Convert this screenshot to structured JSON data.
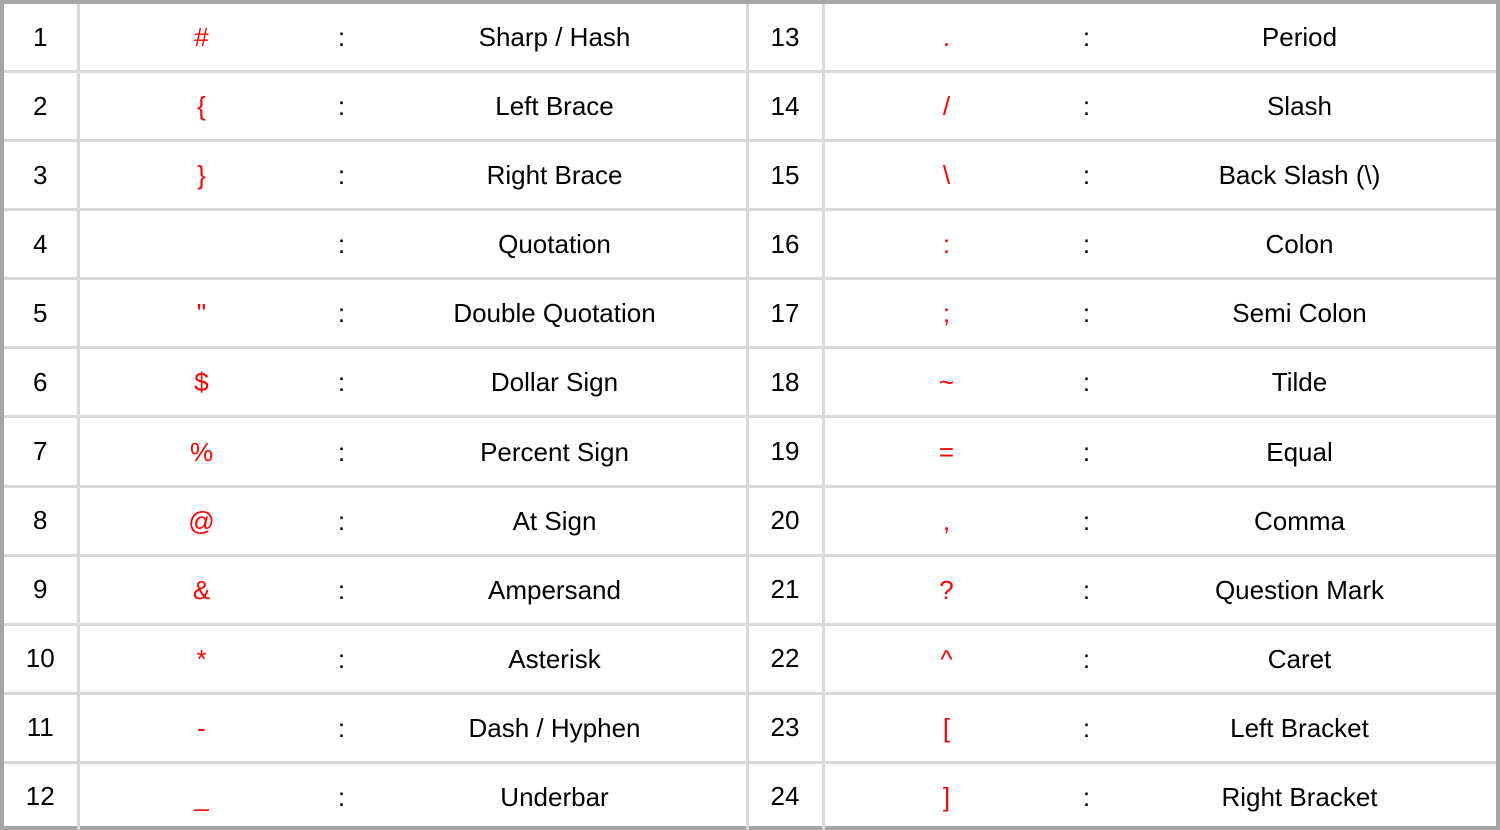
{
  "rows": [
    {
      "left": {
        "num": "1",
        "symbol": "#",
        "sep": ":",
        "name": "Sharp / Hash"
      },
      "right": {
        "num": "13",
        "symbol": ".",
        "sep": ":",
        "name": "Period"
      }
    },
    {
      "left": {
        "num": "2",
        "symbol": "{",
        "sep": ":",
        "name": "Left Brace"
      },
      "right": {
        "num": "14",
        "symbol": "/",
        "sep": ":",
        "name": "Slash"
      }
    },
    {
      "left": {
        "num": "3",
        "symbol": "}",
        "sep": ":",
        "name": "Right Brace"
      },
      "right": {
        "num": "15",
        "symbol": "\\",
        "sep": ":",
        "name": "Back Slash (\\)"
      }
    },
    {
      "left": {
        "num": "4",
        "symbol": "",
        "sep": ":",
        "name": "Quotation"
      },
      "right": {
        "num": "16",
        "symbol": ":",
        "sep": ":",
        "name": "Colon"
      }
    },
    {
      "left": {
        "num": "5",
        "symbol": "\"",
        "sep": ":",
        "name": "Double Quotation"
      },
      "right": {
        "num": "17",
        "symbol": ";",
        "sep": ":",
        "name": "Semi Colon"
      }
    },
    {
      "left": {
        "num": "6",
        "symbol": "$",
        "sep": ":",
        "name": "Dollar Sign"
      },
      "right": {
        "num": "18",
        "symbol": "~",
        "sep": ":",
        "name": "Tilde"
      }
    },
    {
      "left": {
        "num": "7",
        "symbol": "%",
        "sep": ":",
        "name": "Percent Sign"
      },
      "right": {
        "num": "19",
        "symbol": "=",
        "sep": ":",
        "name": "Equal"
      }
    },
    {
      "left": {
        "num": "8",
        "symbol": "@",
        "sep": ":",
        "name": "At Sign"
      },
      "right": {
        "num": "20",
        "symbol": ",",
        "sep": ":",
        "name": "Comma"
      }
    },
    {
      "left": {
        "num": "9",
        "symbol": "&",
        "sep": ":",
        "name": "Ampersand"
      },
      "right": {
        "num": "21",
        "symbol": "?",
        "sep": ":",
        "name": "Question Mark"
      }
    },
    {
      "left": {
        "num": "10",
        "symbol": "*",
        "sep": ":",
        "name": "Asterisk"
      },
      "right": {
        "num": "22",
        "symbol": "^",
        "sep": ":",
        "name": "Caret"
      }
    },
    {
      "left": {
        "num": "11",
        "symbol": "-",
        "sep": ":",
        "name": "Dash / Hyphen"
      },
      "right": {
        "num": "23",
        "symbol": "[",
        "sep": ":",
        "name": "Left Bracket"
      }
    },
    {
      "left": {
        "num": "12",
        "symbol": "_",
        "sep": ":",
        "name": "Underbar"
      },
      "right": {
        "num": "24",
        "symbol": "]",
        "sep": ":",
        "name": "Right Bracket"
      }
    }
  ],
  "colors": {
    "symbol": "#ff0000",
    "text": "#000000",
    "grid": "#d9d9d9",
    "frame": "#a6a6a6"
  }
}
